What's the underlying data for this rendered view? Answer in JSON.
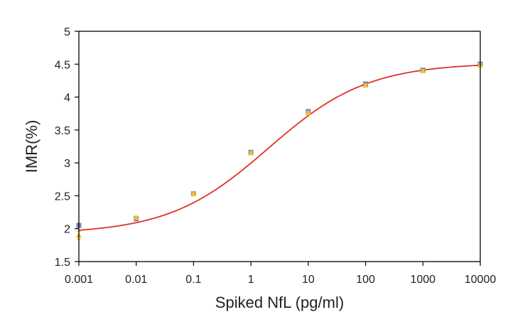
{
  "chart_data": {
    "type": "scatter",
    "xlabel": "Spiked NfL (pg/ml)",
    "ylabel": "IMR(%)",
    "x_scale": "log",
    "xlim": [
      0.001,
      10000
    ],
    "ylim": [
      1.5,
      5
    ],
    "x_ticks": [
      "0.001",
      "0.01",
      "0.1",
      "1",
      "10",
      "100",
      "1000",
      "10000"
    ],
    "y_ticks": [
      "1.5",
      "2",
      "2.5",
      "3",
      "3.5",
      "4",
      "4.5",
      "5"
    ],
    "grid": false,
    "legend": "none",
    "series": [
      {
        "marker": "square",
        "color": "#7a7fc4",
        "x": [
          0.001,
          0.01,
          0.1,
          1,
          10,
          100,
          1000,
          10000
        ],
        "y": [
          2.05,
          2.15,
          2.53,
          3.16,
          3.78,
          4.2,
          4.41,
          4.5
        ],
        "error": [
          0.03,
          0.02,
          0.02,
          0.02,
          0.02,
          0.03,
          0.02,
          0.02
        ]
      },
      {
        "marker": "triangle",
        "color": "#f2c12e",
        "x": [
          0.001,
          0.01,
          0.1,
          1,
          10,
          100,
          1000,
          10000
        ],
        "y": [
          1.9,
          2.17,
          2.53,
          3.15,
          3.76,
          4.18,
          4.4,
          4.49
        ],
        "error": [
          0.06,
          0.02,
          0.02,
          0.02,
          0.02,
          0.02,
          0.02,
          0.02
        ]
      }
    ],
    "fit": {
      "model": "4PL",
      "color": "#e0312a",
      "bottom": 1.92,
      "top": 4.52,
      "ec50": 2.0,
      "hill": 0.5
    }
  }
}
